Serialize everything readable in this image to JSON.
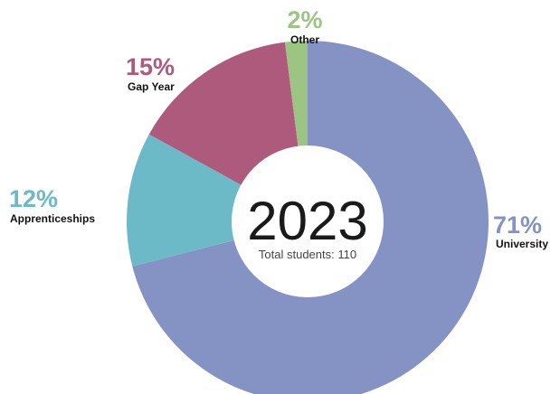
{
  "chart_data": {
    "type": "pie",
    "variant": "donut",
    "center": {
      "title": "2023",
      "subtitle": "Total students: 110"
    },
    "slices": [
      {
        "name": "University",
        "value": 71,
        "pct_label": "71%",
        "color": "#8593c4"
      },
      {
        "name": "Apprenticeships",
        "value": 12,
        "pct_label": "12%",
        "color": "#6cbac8"
      },
      {
        "name": "Gap Year",
        "value": 15,
        "pct_label": "15%",
        "color": "#ad5a7d"
      },
      {
        "name": "Other",
        "value": 2,
        "pct_label": "2%",
        "color": "#9cc483"
      }
    ],
    "order": "clockwise from top",
    "legend": "none (labels placed beside slices)"
  }
}
